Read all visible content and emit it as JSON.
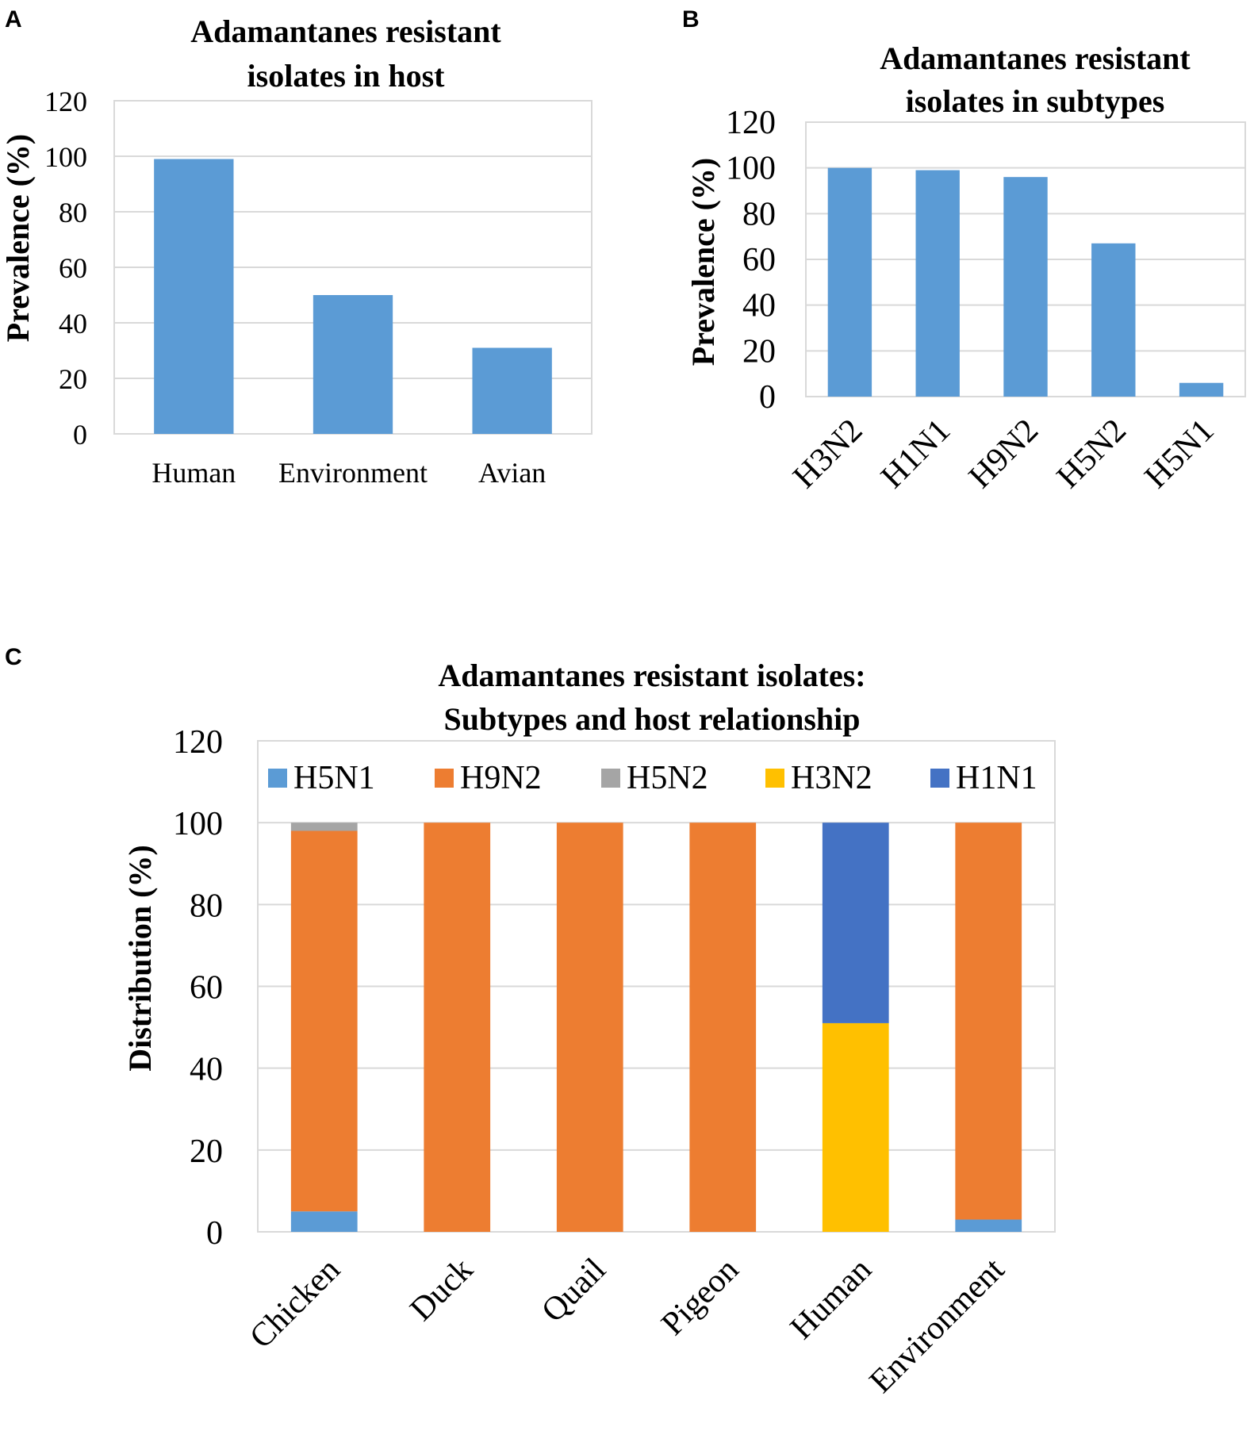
{
  "chart_data": [
    {
      "panel": "A",
      "type": "bar",
      "title_lines": [
        "Adamantanes resistant",
        "isolates in host"
      ],
      "ylabel": "Prevalence (%)",
      "xlabel": "",
      "ylim": [
        0,
        120
      ],
      "yticks": [
        "0",
        "20",
        "40",
        "60",
        "80",
        "100",
        "120"
      ],
      "categories": [
        "Human",
        "Environment",
        "Avian"
      ],
      "values": [
        99,
        50,
        31
      ],
      "color": "#5b9bd5",
      "grid": true
    },
    {
      "panel": "B",
      "type": "bar",
      "title_lines": [
        "Adamantanes resistant",
        "isolates in subtypes"
      ],
      "ylabel": "Prevalence (%)",
      "xlabel": "",
      "ylim": [
        0,
        120
      ],
      "yticks": [
        "0",
        "20",
        "40",
        "60",
        "80",
        "100",
        "120"
      ],
      "categories": [
        "H3N2",
        "H1N1",
        "H9N2",
        "H5N2",
        "H5N1"
      ],
      "values": [
        100,
        99,
        96,
        67,
        6
      ],
      "color": "#5b9bd5",
      "grid": true
    },
    {
      "panel": "C",
      "type": "bar",
      "stacked": true,
      "title_lines": [
        "Adamantanes resistant isolates:",
        "Subtypes and host relationship"
      ],
      "ylabel": "Distribution (%)",
      "xlabel": "",
      "ylim": [
        0,
        120
      ],
      "yticks": [
        "0",
        "20",
        "40",
        "60",
        "80",
        "100",
        "120"
      ],
      "categories": [
        "Chicken",
        "Duck",
        "Quail",
        "Pigeon",
        "Human",
        "Environment"
      ],
      "legend_position": "top",
      "series": [
        {
          "name": "H5N1",
          "color": "#5b9bd5",
          "values": [
            5,
            0,
            0,
            0,
            0,
            3
          ]
        },
        {
          "name": "H9N2",
          "color": "#ed7d31",
          "values": [
            93,
            100,
            100,
            100,
            0,
            97
          ]
        },
        {
          "name": "H5N2",
          "color": "#a5a5a5",
          "values": [
            2,
            0,
            0,
            0,
            0,
            0
          ]
        },
        {
          "name": "H3N2",
          "color": "#ffc000",
          "values": [
            0,
            0,
            0,
            0,
            51,
            0
          ]
        },
        {
          "name": "H1N1",
          "color": "#4472c4",
          "values": [
            0,
            0,
            0,
            0,
            49,
            0
          ]
        }
      ],
      "grid": true
    }
  ]
}
